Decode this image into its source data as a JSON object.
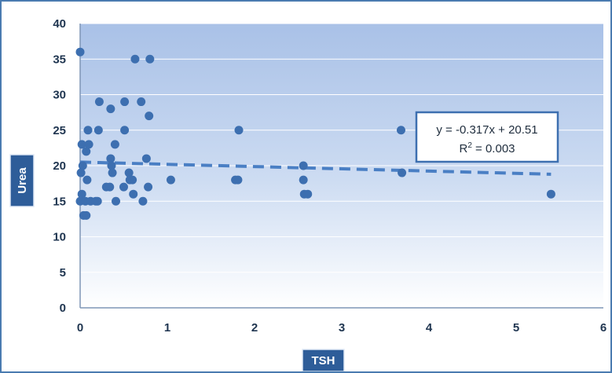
{
  "chart_data": {
    "type": "scatter",
    "title": "",
    "xlabel": "TSH",
    "ylabel": "Urea",
    "xlim": [
      0,
      6
    ],
    "ylim": [
      0,
      40
    ],
    "x_ticks": [
      0,
      1,
      2,
      3,
      4,
      5,
      6
    ],
    "y_ticks": [
      0,
      5,
      10,
      15,
      20,
      25,
      30,
      35,
      40
    ],
    "grid": {
      "horizontal": true,
      "vertical": false
    },
    "colors": {
      "marker": "#3d6fb0",
      "trendline": "#4a7fc4",
      "plot_top": "#a9c1e7",
      "plot_bottom": "#ffffff",
      "label_box": "#2e5d99"
    },
    "points": [
      {
        "x": 0.0,
        "y": 36
      },
      {
        "x": 0.02,
        "y": 23
      },
      {
        "x": 0.03,
        "y": 20
      },
      {
        "x": 0.01,
        "y": 19
      },
      {
        "x": 0.02,
        "y": 16
      },
      {
        "x": 0.0,
        "y": 15
      },
      {
        "x": 0.04,
        "y": 13
      },
      {
        "x": 0.07,
        "y": 13
      },
      {
        "x": 0.06,
        "y": 15
      },
      {
        "x": 0.08,
        "y": 18
      },
      {
        "x": 0.07,
        "y": 22
      },
      {
        "x": 0.09,
        "y": 25
      },
      {
        "x": 0.1,
        "y": 23
      },
      {
        "x": 0.12,
        "y": 15
      },
      {
        "x": 0.18,
        "y": 15
      },
      {
        "x": 0.2,
        "y": 15
      },
      {
        "x": 0.21,
        "y": 25
      },
      {
        "x": 0.22,
        "y": 29
      },
      {
        "x": 0.3,
        "y": 17
      },
      {
        "x": 0.34,
        "y": 17
      },
      {
        "x": 0.35,
        "y": 28
      },
      {
        "x": 0.35,
        "y": 21
      },
      {
        "x": 0.36,
        "y": 20
      },
      {
        "x": 0.37,
        "y": 19
      },
      {
        "x": 0.4,
        "y": 23
      },
      {
        "x": 0.41,
        "y": 15
      },
      {
        "x": 0.5,
        "y": 17
      },
      {
        "x": 0.51,
        "y": 25
      },
      {
        "x": 0.51,
        "y": 29
      },
      {
        "x": 0.56,
        "y": 19
      },
      {
        "x": 0.57,
        "y": 18
      },
      {
        "x": 0.6,
        "y": 18
      },
      {
        "x": 0.61,
        "y": 16
      },
      {
        "x": 0.63,
        "y": 35
      },
      {
        "x": 0.7,
        "y": 29
      },
      {
        "x": 0.72,
        "y": 15
      },
      {
        "x": 0.76,
        "y": 21
      },
      {
        "x": 0.78,
        "y": 17
      },
      {
        "x": 0.79,
        "y": 27
      },
      {
        "x": 0.8,
        "y": 35
      },
      {
        "x": 1.04,
        "y": 18
      },
      {
        "x": 1.78,
        "y": 18
      },
      {
        "x": 1.81,
        "y": 18
      },
      {
        "x": 1.82,
        "y": 25
      },
      {
        "x": 2.56,
        "y": 20
      },
      {
        "x": 2.56,
        "y": 18
      },
      {
        "x": 2.57,
        "y": 16
      },
      {
        "x": 2.61,
        "y": 16
      },
      {
        "x": 3.68,
        "y": 25
      },
      {
        "x": 3.69,
        "y": 19
      },
      {
        "x": 5.4,
        "y": 16
      }
    ],
    "trendline": {
      "type": "linear",
      "slope": -0.317,
      "intercept": 20.51,
      "x_range": [
        0,
        5.4
      ],
      "equation": "y = -0.317x + 20.51",
      "r_squared_prefix": "R",
      "r_squared_sup": "2",
      "r_squared_value": " = 0.003"
    }
  }
}
